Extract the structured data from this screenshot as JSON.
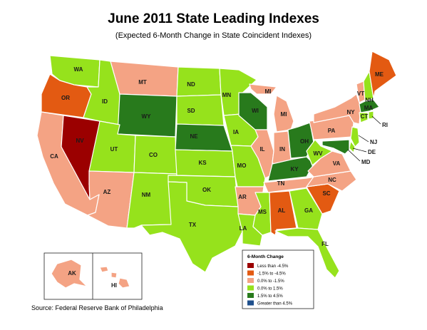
{
  "title": "June 2011 State Leading Indexes",
  "subtitle": "(Expected 6-Month Change in State Coincident Indexes)",
  "source": "Source: Federal Reserve Bank of Philadelphia",
  "colors": {
    "lt_m45": "#9b0000",
    "m15_m45": "#e35a12",
    "p00_m15": "#f4a384",
    "p00_p15": "#96e21c",
    "p15_p45": "#287a1c",
    "gt_p45": "#1e4f8c",
    "state_outline": "#ffffff"
  },
  "legend": {
    "title": "6-Month Change",
    "items": [
      {
        "key": "lt_m45",
        "label": "Less than -4.5%"
      },
      {
        "key": "m15_m45",
        "label": "-1.5% to -4.5%"
      },
      {
        "key": "p00_m15",
        "label": "0.0% to -1.5%"
      },
      {
        "key": "p00_p15",
        "label": "0.0% to  1.5%"
      },
      {
        "key": "p15_p45",
        "label": "1.5% to  4.5%"
      },
      {
        "key": "gt_p45",
        "label": "Greater than 4.5%"
      }
    ]
  },
  "states": {
    "WA": "p00_p15",
    "OR": "m15_m45",
    "CA": "p00_m15",
    "NV": "lt_m45",
    "ID": "p00_p15",
    "MT": "p00_m15",
    "WY": "p15_p45",
    "UT": "p00_p15",
    "AZ": "p00_m15",
    "CO": "p00_p15",
    "NM": "p00_p15",
    "ND": "p00_p15",
    "SD": "p00_p15",
    "NE": "p15_p45",
    "KS": "p00_p15",
    "OK": "p00_p15",
    "TX": "p00_p15",
    "MN": "p00_p15",
    "IA": "p00_p15",
    "MO": "p00_p15",
    "AR": "p00_m15",
    "LA": "p00_p15",
    "WI": "p15_p45",
    "IL": "p00_m15",
    "MI": "p00_m15",
    "IN": "p00_m15",
    "OH": "p15_p45",
    "KY": "p15_p45",
    "TN": "p00_m15",
    "MS": "p00_p15",
    "AL": "m15_m45",
    "GA": "p00_p15",
    "FL": "p00_p15",
    "SC": "m15_m45",
    "NC": "p00_m15",
    "VA": "p00_m15",
    "WV": "p00_p15",
    "PA": "p00_m15",
    "NY": "p00_m15",
    "VT": "p00_m15",
    "NH": "p00_p15",
    "ME": "m15_m45",
    "MA": "p15_p45",
    "RI": "p00_p15",
    "CT": "p00_p15",
    "NJ": "p00_p15",
    "DE": "p00_p15",
    "MD": "p15_p45",
    "AK": "p00_m15",
    "HI": "p00_m15"
  }
}
